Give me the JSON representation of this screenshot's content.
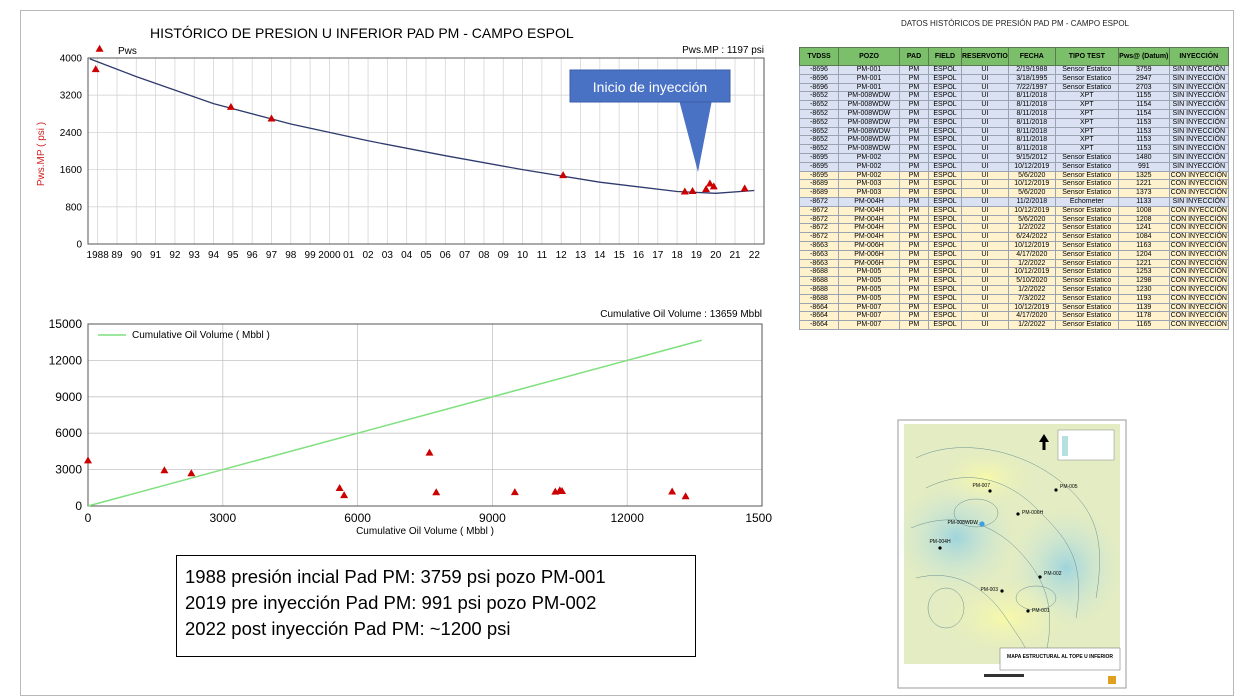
{
  "pressure_chart": {
    "title": "HISTÓRICO DE PRESION U INFERIOR PAD PM - CAMPO ESPOL",
    "legend": "Pws",
    "readout": "Pws.MP : 1197 psi",
    "ylabel": "Pws.MP ( psi )",
    "callout": "Inicio de inyección"
  },
  "cumulative_chart": {
    "readout": "Cumulative Oil Volume : 13659 Mbbl",
    "legend": "Cumulative Oil Volume ( Mbbl )",
    "xlabel": "Cumulative Oil Volume ( Mbbl )"
  },
  "chart_data": [
    {
      "type": "scatter",
      "title": "HISTÓRICO DE PRESION U INFERIOR PAD PM - CAMPO ESPOL",
      "ylabel": "Pws.MP ( psi )",
      "xlabel": "",
      "xlim": [
        1987.5,
        2022.5
      ],
      "ylim": [
        0,
        4000
      ],
      "yticks": [
        0,
        800,
        1600,
        2400,
        3200,
        4000
      ],
      "xtick_labels": [
        "1988",
        "89",
        "90",
        "91",
        "92",
        "93",
        "94",
        "95",
        "96",
        "97",
        "98",
        "99",
        "2000",
        "01",
        "02",
        "03",
        "04",
        "05",
        "06",
        "07",
        "08",
        "09",
        "10",
        "11",
        "12",
        "13",
        "14",
        "15",
        "16",
        "17",
        "18",
        "19",
        "20",
        "21",
        "22"
      ],
      "grid": true,
      "series": [
        {
          "name": "Pws",
          "marker": "triangle",
          "color": "#cc0000",
          "x": [
            1988.1,
            1987.9,
            1994.9,
            1997.0,
            2012.1,
            2018.4,
            2018.8,
            2019.7,
            2019.5,
            2019.9,
            2021.5
          ],
          "y": [
            4200,
            3760,
            2950,
            2700,
            1480,
            1130,
            1140,
            1300,
            1180,
            1240,
            1197
          ]
        },
        {
          "name": "trend",
          "type": "line",
          "color": "#2e3a6e",
          "x": [
            1987.6,
            1990,
            1994,
            1998,
            2002,
            2006,
            2010,
            2014,
            2018,
            2020,
            2022
          ],
          "y": [
            3980,
            3600,
            3020,
            2580,
            2220,
            1900,
            1600,
            1330,
            1130,
            1090,
            1150
          ]
        }
      ]
    },
    {
      "type": "scatter",
      "title": "",
      "xlabel": "Cumulative Oil Volume ( Mbbl )",
      "ylabel": "",
      "xlim": [
        0,
        15000
      ],
      "ylim": [
        0,
        15000
      ],
      "xticks": [
        0,
        3000,
        6000,
        9000,
        12000,
        15000
      ],
      "yticks": [
        0,
        3000,
        6000,
        9000,
        12000,
        15000
      ],
      "grid": true,
      "series": [
        {
          "name": "Cumulative Oil Volume ( Mbbl )",
          "type": "line",
          "color": "#7fe07f",
          "x": [
            0,
            13659
          ],
          "y": [
            0,
            13659
          ]
        },
        {
          "name": "Pws",
          "marker": "triangle",
          "color": "#cc0000",
          "x": [
            0,
            1700,
            2300,
            5600,
            5700,
            7600,
            7750,
            9500,
            10400,
            10500,
            10550,
            13000,
            13300
          ],
          "y": [
            3760,
            2950,
            2700,
            1480,
            900,
            4400,
            1130,
            1140,
            1180,
            1300,
            1240,
            1197,
            800
          ]
        }
      ]
    },
    {
      "type": "table",
      "title": "DATOS HISTÓRICOS DE PRESIÓN PAD PM - CAMPO ESPOL",
      "columns": [
        "TVDSS",
        "POZO",
        "PAD",
        "FIELD",
        "RESERVOTIO",
        "FECHA",
        "TIPO TEST",
        "Pws@ (Datum)",
        "INYECCIÓN"
      ],
      "rows": [
        [
          "-8696",
          "PM-001",
          "PM",
          "ESPOL",
          "UI",
          "2/19/1988",
          "Sensor Estatico",
          "3759",
          "SIN INYECCIÓN"
        ],
        [
          "-8696",
          "PM-001",
          "PM",
          "ESPOL",
          "UI",
          "3/18/1995",
          "Sensor Estatico",
          "2947",
          "SIN INYECCIÓN"
        ],
        [
          "-8696",
          "PM-001",
          "PM",
          "ESPOL",
          "UI",
          "7/22/1997",
          "Sensor Estatico",
          "2703",
          "SIN INYECCIÓN"
        ],
        [
          "-8652",
          "PM-008WDW",
          "PM",
          "ESPOL",
          "UI",
          "8/11/2018",
          "XPT",
          "1155",
          "SIN INYECCIÓN"
        ],
        [
          "-8652",
          "PM-008WDW",
          "PM",
          "ESPOL",
          "UI",
          "8/11/2018",
          "XPT",
          "1154",
          "SIN INYECCIÓN"
        ],
        [
          "-8652",
          "PM-008WDW",
          "PM",
          "ESPOL",
          "UI",
          "8/11/2018",
          "XPT",
          "1154",
          "SIN INYECCIÓN"
        ],
        [
          "-8652",
          "PM-008WDW",
          "PM",
          "ESPOL",
          "UI",
          "8/11/2018",
          "XPT",
          "1153",
          "SIN INYECCIÓN"
        ],
        [
          "-8652",
          "PM-008WDW",
          "PM",
          "ESPOL",
          "UI",
          "8/11/2018",
          "XPT",
          "1153",
          "SIN INYECCIÓN"
        ],
        [
          "-8652",
          "PM-008WDW",
          "PM",
          "ESPOL",
          "UI",
          "8/11/2018",
          "XPT",
          "1153",
          "SIN INYECCIÓN"
        ],
        [
          "-8652",
          "PM-008WDW",
          "PM",
          "ESPOL",
          "UI",
          "8/11/2018",
          "XPT",
          "1153",
          "SIN INYECCIÓN"
        ],
        [
          "-8695",
          "PM-002",
          "PM",
          "ESPOL",
          "UI",
          "9/15/2012",
          "Sensor Estatico",
          "1480",
          "SIN INYECCIÓN"
        ],
        [
          "-8695",
          "PM-002",
          "PM",
          "ESPOL",
          "UI",
          "10/12/2019",
          "Sensor Estatico",
          "991",
          "SIN INYECCIÓN"
        ],
        [
          "-8695",
          "PM-002",
          "PM",
          "ESPOL",
          "UI",
          "5/6/2020",
          "Sensor Estatico",
          "1325",
          "CON INYECCIÓN"
        ],
        [
          "-8689",
          "PM-003",
          "PM",
          "ESPOL",
          "UI",
          "10/12/2019",
          "Sensor Estatico",
          "1221",
          "CON INYECCIÓN"
        ],
        [
          "-8689",
          "PM-003",
          "PM",
          "ESPOL",
          "UI",
          "5/6/2020",
          "Sensor Estatico",
          "1373",
          "CON INYECCIÓN"
        ],
        [
          "-8672",
          "PM-004H",
          "PM",
          "ESPOL",
          "UI",
          "11/2/2018",
          "Echometer",
          "1133",
          "SIN INYECCIÓN"
        ],
        [
          "-8672",
          "PM-004H",
          "PM",
          "ESPOL",
          "UI",
          "10/12/2019",
          "Sensor Estatico",
          "1008",
          "CON INYECCIÓN"
        ],
        [
          "-8672",
          "PM-004H",
          "PM",
          "ESPOL",
          "UI",
          "5/6/2020",
          "Sensor Estatico",
          "1208",
          "CON INYECCIÓN"
        ],
        [
          "-8672",
          "PM-004H",
          "PM",
          "ESPOL",
          "UI",
          "1/2/2022",
          "Sensor Estatico",
          "1241",
          "CON INYECCIÓN"
        ],
        [
          "-8672",
          "PM-004H",
          "PM",
          "ESPOL",
          "UI",
          "6/24/2022",
          "Sensor Estatico",
          "1084",
          "CON INYECCIÓN"
        ],
        [
          "-8663",
          "PM-006H",
          "PM",
          "ESPOL",
          "UI",
          "10/12/2019",
          "Sensor Estatico",
          "1163",
          "CON INYECCIÓN"
        ],
        [
          "-8663",
          "PM-006H",
          "PM",
          "ESPOL",
          "UI",
          "4/17/2020",
          "Sensor Estatico",
          "1204",
          "CON INYECCIÓN"
        ],
        [
          "-8663",
          "PM-006H",
          "PM",
          "ESPOL",
          "UI",
          "1/2/2022",
          "Sensor Estatico",
          "1221",
          "CON INYECCIÓN"
        ],
        [
          "-8688",
          "PM-005",
          "PM",
          "ESPOL",
          "UI",
          "10/12/2019",
          "Sensor Estatico",
          "1253",
          "CON INYECCIÓN"
        ],
        [
          "-8688",
          "PM-005",
          "PM",
          "ESPOL",
          "UI",
          "5/10/2020",
          "Sensor Estatico",
          "1298",
          "CON INYECCIÓN"
        ],
        [
          "-8688",
          "PM-005",
          "PM",
          "ESPOL",
          "UI",
          "1/2/2022",
          "Sensor Estatico",
          "1230",
          "CON INYECCIÓN"
        ],
        [
          "-8688",
          "PM-005",
          "PM",
          "ESPOL",
          "UI",
          "7/3/2022",
          "Sensor Estatico",
          "1193",
          "CON INYECCIÓN"
        ],
        [
          "-8664",
          "PM-007",
          "PM",
          "ESPOL",
          "UI",
          "10/12/2019",
          "Sensor Estatico",
          "1139",
          "CON INYECCIÓN"
        ],
        [
          "-8664",
          "PM-007",
          "PM",
          "ESPOL",
          "UI",
          "4/17/2020",
          "Sensor Estatico",
          "1178",
          "CON INYECCIÓN"
        ],
        [
          "-8664",
          "PM-007",
          "PM",
          "ESPOL",
          "UI",
          "1/2/2022",
          "Sensor Estatico",
          "1165",
          "CON INYECCIÓN"
        ]
      ]
    }
  ],
  "table_title": "DATOS HISTÓRICOS DE PRESIÓN PAD PM - CAMPO ESPOL",
  "summary": {
    "line1": "1988 presión incial Pad PM: 3759 psi pozo PM-001",
    "line2": "2019 pre inyección Pad PM: 991 psi pozo PM-002",
    "line3": "2022 post inyección Pad PM: ~1200 psi"
  },
  "map": {
    "title": "MAPA ESTRUCTURAL AL TOPE U INFERIOR",
    "wells": [
      "PM-007",
      "PM-005",
      "PM-008WDW",
      "PM-006H",
      "PM-004H",
      "PM-002",
      "PM-003",
      "PM-001"
    ],
    "colors": {
      "background": "#e9efc0",
      "high": "#f0f4a0",
      "low": "#b6dfe0",
      "contour": "#6a8f90"
    }
  }
}
